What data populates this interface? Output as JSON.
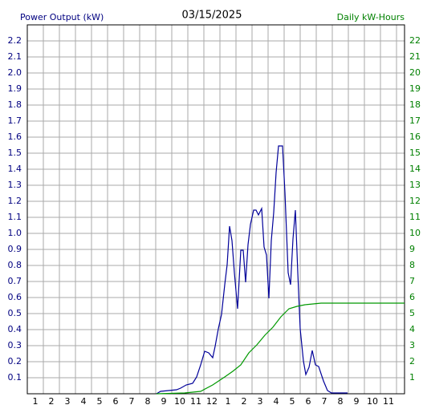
{
  "chart_data": {
    "type": "line",
    "title": "03/15/2025",
    "ylabel": "Power Output (kW)",
    "y2label": "Daily kW-Hours",
    "xlim": [
      0,
      23.5
    ],
    "xticks": [
      {
        "value": 0.5,
        "label": "1"
      },
      {
        "value": 1.5,
        "label": "2"
      },
      {
        "value": 2.5,
        "label": "3"
      },
      {
        "value": 3.5,
        "label": "4"
      },
      {
        "value": 4.5,
        "label": "5"
      },
      {
        "value": 5.5,
        "label": "6"
      },
      {
        "value": 6.5,
        "label": "7"
      },
      {
        "value": 7.5,
        "label": "8"
      },
      {
        "value": 8.5,
        "label": "9"
      },
      {
        "value": 9.5,
        "label": "10"
      },
      {
        "value": 10.5,
        "label": "11"
      },
      {
        "value": 11.5,
        "label": "12"
      },
      {
        "value": 12.5,
        "label": "1"
      },
      {
        "value": 13.5,
        "label": "2"
      },
      {
        "value": 14.5,
        "label": "3"
      },
      {
        "value": 15.5,
        "label": "4"
      },
      {
        "value": 16.5,
        "label": "5"
      },
      {
        "value": 17.5,
        "label": "6"
      },
      {
        "value": 18.5,
        "label": "7"
      },
      {
        "value": 19.5,
        "label": "8"
      },
      {
        "value": 20.5,
        "label": "9"
      },
      {
        "value": 21.5,
        "label": "10"
      },
      {
        "value": 22.5,
        "label": "11"
      }
    ],
    "ylim": [
      0,
      2.3
    ],
    "yticks": [
      {
        "value": 0.1,
        "label": "0.1"
      },
      {
        "value": 0.2,
        "label": "0.2"
      },
      {
        "value": 0.3,
        "label": "0.3"
      },
      {
        "value": 0.4,
        "label": "0.4"
      },
      {
        "value": 0.5,
        "label": "0.5"
      },
      {
        "value": 0.6,
        "label": "0.6"
      },
      {
        "value": 0.7,
        "label": "0.7"
      },
      {
        "value": 0.8,
        "label": "0.8"
      },
      {
        "value": 0.9,
        "label": "0.9"
      },
      {
        "value": 1,
        "label": "1.0"
      },
      {
        "value": 1.1,
        "label": "1.1"
      },
      {
        "value": 1.2,
        "label": "1.2"
      },
      {
        "value": 1.3,
        "label": "1.3"
      },
      {
        "value": 1.4,
        "label": "1.4"
      },
      {
        "value": 1.5,
        "label": "1.5"
      },
      {
        "value": 1.6,
        "label": "1.6"
      },
      {
        "value": 1.7,
        "label": "1.7"
      },
      {
        "value": 1.8,
        "label": "1.8"
      },
      {
        "value": 1.9,
        "label": "1.9"
      },
      {
        "value": 2,
        "label": "2.0"
      },
      {
        "value": 2.1,
        "label": "2.1"
      },
      {
        "value": 2.2,
        "label": "2.2"
      }
    ],
    "y2lim": [
      0,
      23
    ],
    "y2ticks": [
      1,
      2,
      3,
      4,
      5,
      6,
      7,
      8,
      9,
      10,
      11,
      12,
      13,
      14,
      15,
      16,
      17,
      18,
      19,
      20,
      21,
      22
    ],
    "grid": true,
    "ycolor": "#000080",
    "y2color": "#008000",
    "series": [
      {
        "name": "Power Output (kW)",
        "color": "#000099",
        "x": [
          8.05,
          8.3,
          8.8,
          9.3,
          9.55,
          9.9,
          10.3,
          10.55,
          10.8,
          11.05,
          11.3,
          11.55,
          11.7,
          11.9,
          12.1,
          12.3,
          12.45,
          12.6,
          12.75,
          12.9,
          13.1,
          13.3,
          13.45,
          13.6,
          13.75,
          13.9,
          14.1,
          14.25,
          14.4,
          14.6,
          14.75,
          14.9,
          15.05,
          15.2,
          15.35,
          15.5,
          15.65,
          15.9,
          16.05,
          16.25,
          16.4,
          16.55,
          16.7,
          16.85,
          17.0,
          17.2,
          17.35,
          17.55,
          17.75,
          17.95,
          18.15,
          18.45,
          18.7,
          18.95,
          19.95
        ],
        "values": [
          0,
          0.015,
          0.02,
          0.025,
          0.035,
          0.055,
          0.065,
          0.105,
          0.18,
          0.265,
          0.255,
          0.225,
          0.295,
          0.405,
          0.495,
          0.68,
          0.805,
          1.045,
          0.955,
          0.755,
          0.53,
          0.895,
          0.895,
          0.695,
          0.93,
          1.055,
          1.145,
          1.145,
          1.115,
          1.155,
          0.915,
          0.865,
          0.595,
          0.955,
          1.13,
          1.38,
          1.545,
          1.545,
          1.255,
          0.755,
          0.68,
          0.965,
          1.145,
          0.755,
          0.405,
          0.205,
          0.12,
          0.165,
          0.27,
          0.18,
          0.17,
          0.08,
          0.02,
          0.005,
          0.005
        ]
      },
      {
        "name": "Daily kW-Hours",
        "color": "#009900",
        "axis": "y2",
        "x": [
          8.05,
          9.8,
          10.8,
          11.55,
          12.3,
          12.8,
          13.3,
          13.8,
          14.3,
          14.8,
          15.3,
          15.8,
          16.3,
          16.8,
          17.3,
          17.8,
          18.3,
          18.8,
          23.5
        ],
        "values": [
          0,
          0.05,
          0.15,
          0.55,
          1.05,
          1.4,
          1.8,
          2.55,
          3.05,
          3.65,
          4.15,
          4.8,
          5.3,
          5.45,
          5.55,
          5.6,
          5.65,
          5.65,
          5.65
        ]
      }
    ]
  }
}
